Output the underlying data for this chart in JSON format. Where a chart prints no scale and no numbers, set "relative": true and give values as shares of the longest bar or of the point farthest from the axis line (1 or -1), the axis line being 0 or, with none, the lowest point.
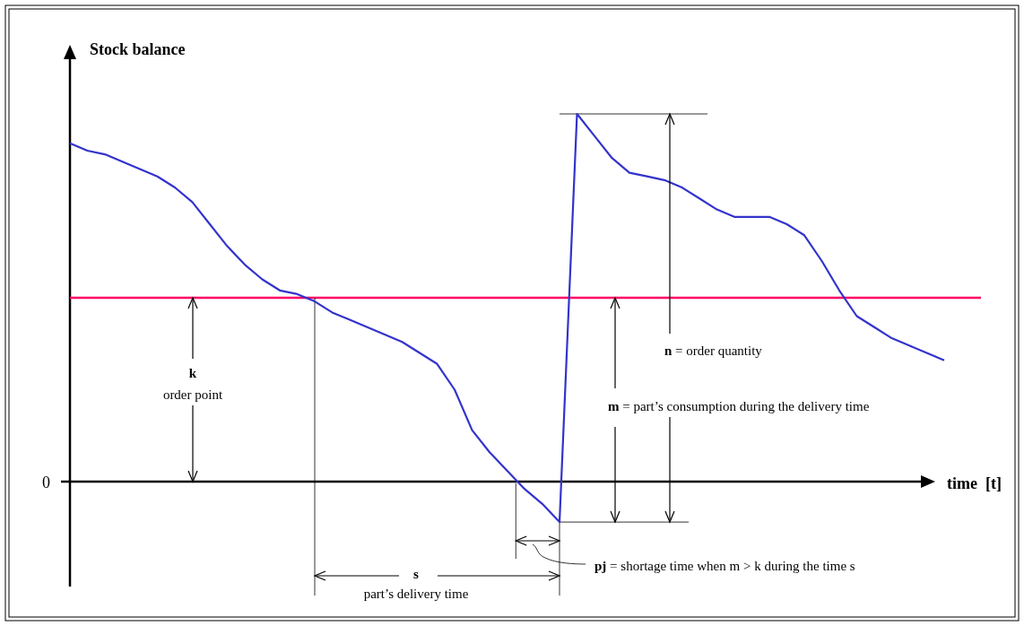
{
  "chart_data": {
    "type": "line",
    "relative": true,
    "xlabel": "time  [t]",
    "ylabel": "Stock balance",
    "categories": [
      null,
      null,
      null,
      null,
      null,
      null,
      null,
      null,
      null,
      null,
      null,
      null,
      null,
      null,
      null,
      null,
      null,
      null,
      null,
      null,
      null,
      null,
      null,
      null,
      null,
      null,
      null,
      null,
      null,
      null,
      null,
      null,
      null,
      null,
      null,
      null,
      null,
      null,
      null,
      null,
      null,
      null,
      null,
      null,
      null,
      null,
      null,
      null,
      null,
      null,
      null
    ],
    "series": [
      {
        "color": "#3333cc",
        "values": [
          0.92,
          0.9,
          0.89,
          0.87,
          0.85,
          0.83,
          0.8,
          0.76,
          0.7,
          0.64,
          0.59,
          0.55,
          0.52,
          0.51,
          0.49,
          0.46,
          0.44,
          0.42,
          0.4,
          0.38,
          0.35,
          0.32,
          0.25,
          0.14,
          0.08,
          0.03,
          -0.02,
          -0.06,
          -0.11,
          1,
          0.94,
          0.88,
          0.84,
          0.83,
          0.82,
          0.8,
          0.77,
          0.74,
          0.72,
          0.72,
          0.72,
          0.7,
          0.67,
          0.6,
          0.52,
          0.45,
          0.42,
          0.39,
          0.37,
          0.35,
          0.33
        ]
      }
    ],
    "ref_lines": [
      {
        "axis": "y",
        "value": 0.5,
        "color": "#ff0066"
      }
    ],
    "annotations": [
      "0",
      "k",
      "order point",
      "n = order quantity",
      "m = part’s consumption during the delivery time",
      "s",
      "part’s delivery time",
      "pj = shortage time when m > k during the time s"
    ],
    "marker": "none",
    "line_style": "solid"
  }
}
